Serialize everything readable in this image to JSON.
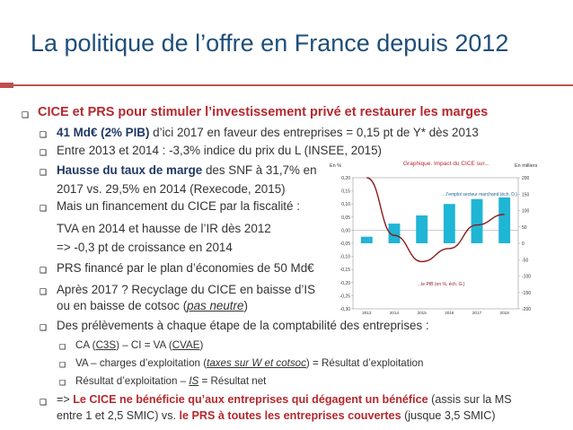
{
  "slide": {
    "title": "La politique de l’offre en France depuis 2012",
    "main_bullet": "CICE et PRS pour stimuler l’investissement privé et restaurer les marges",
    "items": {
      "b1_bold": "41 Md€ (2% PIB)",
      "b1_rest": " d’ici 2017 en faveur des entreprises = 0,15 pt de Y* dès 2013",
      "b2": "Entre 2013 et 2014 : -3,3% indice du prix du L (INSEE, 2015)",
      "b3_bold": "Hausse du taux de marge",
      "b3_rest": " des SNF à 31,7% en",
      "b3_line2": "2017  vs. 29,5% en 2014 (Rexecode, 2015)",
      "b4_line1": "Mais un financement du CICE par la fiscalité :",
      "b4_line2": "TVA en 2014 et hausse de l’IR dès 2012",
      "b4_line3": "=> -0,3 pt de croissance en 2014",
      "b5": "PRS financé par le plan d’économies de 50 Md€",
      "b6_line1": "Après 2017 ? Recyclage du CICE en baisse d’IS",
      "b6_line2a": "ou en baisse de cotsoc (",
      "b6_line2u": "pas neutre",
      "b6_line2b": ")",
      "b7": "Des prélèvements à chaque étape de la comptabilité des entreprises :",
      "s1_a": "CA (",
      "s1_b": "C3S",
      "s1_c": ") – CI = VA (",
      "s1_d": "CVAE",
      "s1_e": ")",
      "s2_a": "VA – charges d’exploitation (",
      "s2_b": "taxes sur W et cotsoc",
      "s2_c": ") = Résultat d’exploitation",
      "s3_a": "Résultat d’exploitation – ",
      "s3_b": "IS",
      "s3_c": " = Résultat net",
      "b8_a": "=> ",
      "b8_b": "Le CICE ne bénéficie qu’aux entreprises qui dégagent un bénéfice",
      "b8_c": " (assis sur la MS",
      "b8_line2a": "entre 1 et 2,5 SMIC) vs. ",
      "b8_line2b": "le PRS à toutes les entreprises couvertes",
      "b8_line2c": " (jusque 3,5 SMIC)"
    }
  },
  "colors": {
    "title": "#1f4e79",
    "accent_red": "#b5282d",
    "rule": "#c0504d",
    "bar": "#1fb5d5",
    "line": "#8b1a1a"
  },
  "chart_data": {
    "type": "bar+line",
    "title": "Graphique. Impact du CICE sur...",
    "left_unit": "En %",
    "right_unit": "En milliers",
    "categories": [
      "2013",
      "2014",
      "2015",
      "2016",
      "2017",
      "2018"
    ],
    "series": [
      {
        "name": "...l'emploi secteur marchand (éch. D.)",
        "type": "bar",
        "axis": "right",
        "values": [
          20,
          60,
          85,
          120,
          135,
          140
        ]
      },
      {
        "name": "...le PIB (en %, éch. G.)",
        "type": "line",
        "axis": "left",
        "values": [
          0.2,
          -0.02,
          -0.12,
          -0.07,
          0.02,
          0.06
        ]
      }
    ],
    "left_axis": {
      "ylim": [
        -0.3,
        0.2
      ],
      "ticks": [
        "0,20",
        "0,15",
        "0,10",
        "0,05",
        "0,00",
        "-0,05",
        "-0,10",
        "-0,15",
        "-0,20",
        "-0,25",
        "-0,30"
      ]
    },
    "right_axis": {
      "ylim": [
        -200,
        200
      ],
      "ticks": [
        "200",
        "150",
        "100",
        "50",
        "0",
        "-50",
        "-100",
        "-150",
        "-200"
      ]
    }
  }
}
